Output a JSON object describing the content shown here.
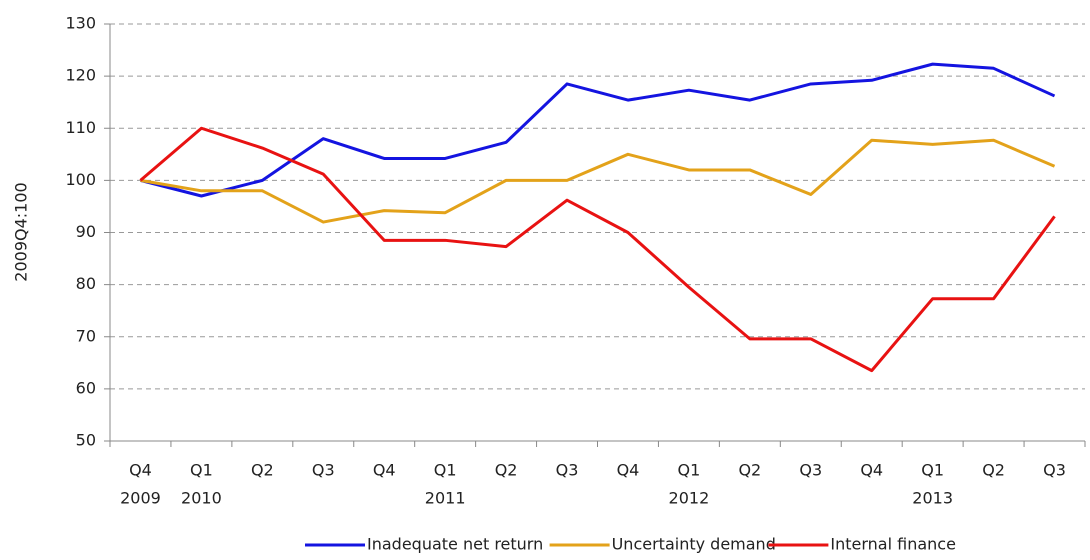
{
  "chart_data": {
    "type": "line",
    "y_label": "2009Q4:100",
    "categories": [
      "Q4",
      "Q1",
      "Q2",
      "Q3",
      "Q4",
      "Q1",
      "Q2",
      "Q3",
      "Q4",
      "Q1",
      "Q2",
      "Q3",
      "Q4",
      "Q1",
      "Q2",
      "Q3"
    ],
    "category_years": [
      "2009",
      "2010",
      null,
      null,
      null,
      "2011",
      null,
      null,
      null,
      "2012",
      null,
      null,
      null,
      "2013",
      null,
      null
    ],
    "series": [
      {
        "name": "Inadequate net return",
        "color": "#1414e0",
        "values": [
          100,
          97,
          100,
          108,
          104.2,
          104.2,
          107.3,
          118.5,
          115.4,
          117.3,
          115.4,
          118.5,
          119.2,
          122.3,
          121.5,
          116.2
        ]
      },
      {
        "name": "Uncertainty demand",
        "color": "#e3a21a",
        "values": [
          100,
          98,
          98,
          92,
          94.2,
          93.8,
          100,
          100,
          105,
          102,
          102,
          97.3,
          107.7,
          106.9,
          107.7,
          102.7
        ]
      },
      {
        "name": "Internal finance",
        "color": "#e81212",
        "values": [
          100,
          110,
          106.2,
          101.2,
          88.5,
          88.5,
          87.3,
          96.2,
          90,
          79.5,
          69.6,
          69.6,
          63.5,
          77.3,
          77.3,
          93.1
        ]
      }
    ],
    "ylim": [
      50,
      130
    ],
    "yticks": [
      50,
      60,
      70,
      80,
      90,
      100,
      110,
      120,
      130
    ],
    "grid": true,
    "legend": "bottom"
  }
}
